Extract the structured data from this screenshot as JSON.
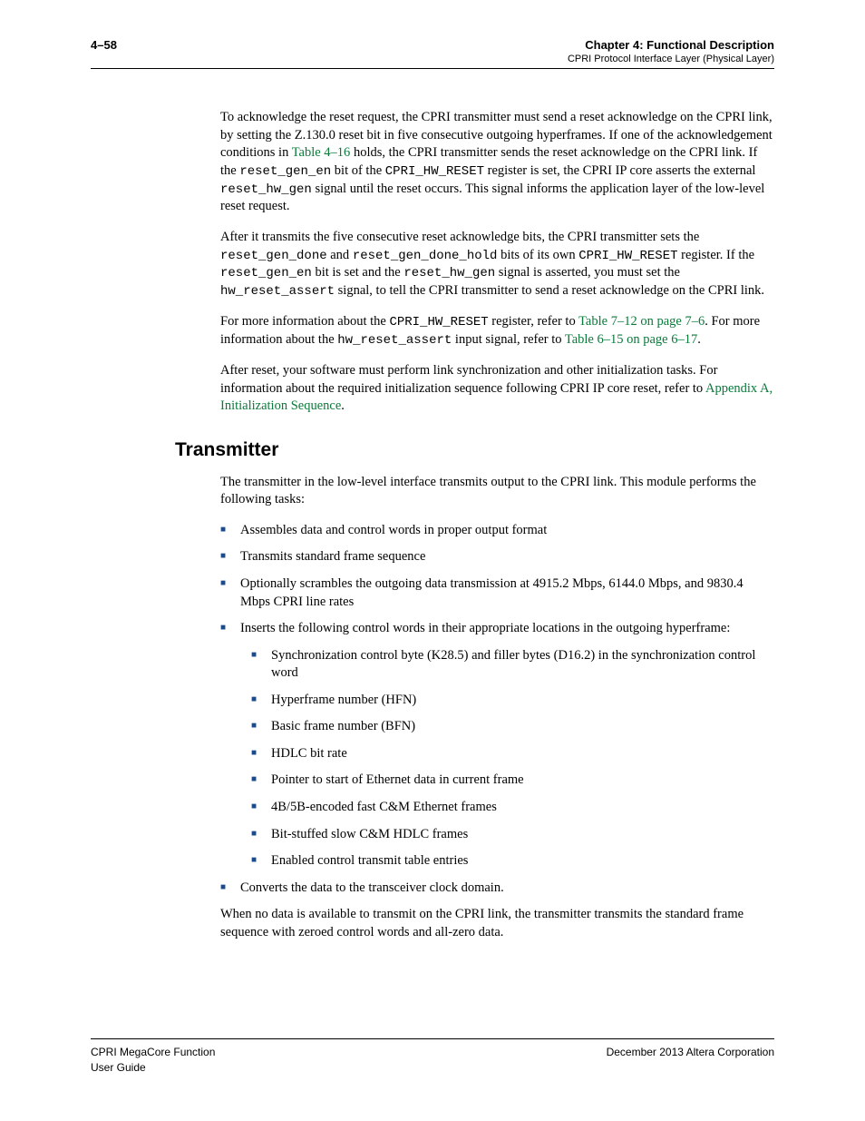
{
  "colors": {
    "text": "#000000",
    "link": "#0a7a3a",
    "bullet": "#1a4b8c",
    "background": "#ffffff",
    "rule": "#000000"
  },
  "fonts": {
    "body_family": "Palatino Linotype",
    "body_size_pt": 11,
    "heading_family": "Arial",
    "heading_size_pt": 16,
    "code_family": "Courier New",
    "header_footer_family": "Arial"
  },
  "header": {
    "page_number": "4–58",
    "chapter": "Chapter 4:  Functional Description",
    "subtitle": "CPRI Protocol Interface Layer (Physical Layer)"
  },
  "paragraphs": {
    "p1_a": "To acknowledge the reset request, the CPRI transmitter must send a reset acknowledge on the CPRI link, by setting the Z.130.0 reset bit in five consecutive outgoing hyperframes. If one of the acknowledgement conditions in ",
    "p1_link1": "Table 4–16",
    "p1_b": " holds, the CPRI transmitter sends the reset acknowledge on the CPRI link. If the ",
    "p1_code1": "reset_gen_en",
    "p1_c": " bit of the ",
    "p1_code2": "CPRI_HW_RESET",
    "p1_d": " register is set, the CPRI IP core asserts the external ",
    "p1_code3": "reset_hw_gen",
    "p1_e": " signal until the reset occurs. This signal informs the application layer of the low-level reset request.",
    "p2_a": "After it transmits the five consecutive reset acknowledge bits, the CPRI transmitter sets the ",
    "p2_code1": "reset_gen_done",
    "p2_b": " and ",
    "p2_code2": "reset_gen_done_hold",
    "p2_c": " bits of its own ",
    "p2_code3": "CPRI_HW_RESET",
    "p2_d": " register. If the ",
    "p2_code4": "reset_gen_en",
    "p2_e": " bit is set and the ",
    "p2_code5": "reset_hw_gen",
    "p2_f": " signal is asserted, you must set the ",
    "p2_code6": "hw_reset_assert",
    "p2_g": " signal, to tell the CPRI transmitter to send a reset acknowledge on the CPRI link.",
    "p3_a": "For more information about the ",
    "p3_code1": "CPRI_HW_RESET",
    "p3_b": " register, refer to ",
    "p3_link1": "Table 7–12 on page 7–6",
    "p3_c": ". For more information about the ",
    "p3_code2": "hw_reset_assert",
    "p3_d": " input signal, refer to ",
    "p3_link2": "Table 6–15 on page 6–17",
    "p3_e": ".",
    "p4_a": "After reset, your software must perform link synchronization and other initialization tasks. For information about the required initialization sequence following CPRI IP core reset, refer to ",
    "p4_link1": "Appendix A, Initialization Sequence",
    "p4_b": "."
  },
  "section": {
    "title": "Transmitter",
    "intro": "The transmitter in the low-level interface transmits output to the CPRI link. This module performs the following tasks:",
    "bullets": [
      "Assembles data and control words in proper output format",
      "Transmits standard frame sequence",
      "Optionally scrambles the outgoing data transmission at 4915.2 Mbps, 6144.0 Mbps, and 9830.4 Mbps CPRI line rates",
      "Inserts the following control words in their appropriate locations in the outgoing hyperframe:"
    ],
    "sub_bullets": [
      "Synchronization control byte (K28.5) and filler bytes (D16.2) in the synchronization control word",
      "Hyperframe number (HFN)",
      "Basic frame number (BFN)",
      "HDLC bit rate",
      "Pointer to start of Ethernet data in current frame",
      "4B/5B-encoded fast C&M Ethernet frames",
      "Bit-stuffed slow C&M HDLC frames",
      "Enabled control transmit table entries"
    ],
    "bullet_last": "Converts the data to the transceiver clock domain.",
    "closing": "When no data is available to transmit on the CPRI link, the transmitter transmits the standard frame sequence with zeroed control words and all-zero data."
  },
  "footer": {
    "left_line1": "CPRI MegaCore Function",
    "left_line2": "User Guide",
    "right": "December 2013   Altera Corporation"
  }
}
